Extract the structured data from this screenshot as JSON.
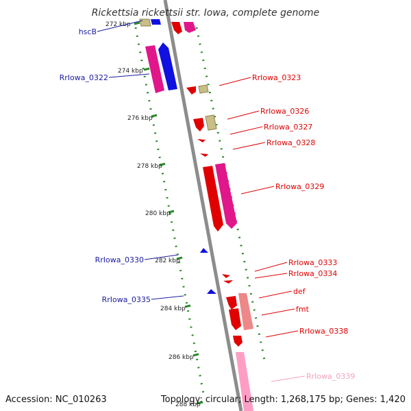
{
  "title": "Rickettsia rickettsii str. Iowa, complete genome",
  "footer": {
    "accession": "Accession: NC_010263",
    "topology": "Topology: circular; Length: 1,268,175 bp; Genes: 1,420"
  },
  "colors": {
    "backbone": "#8c8c8c",
    "guide": "#2a8a2a",
    "forward_label": "#1a1aa0",
    "reverse_label": "#e00000",
    "faded_label": "#f4a0c0"
  },
  "ticks": [
    "272 kbp",
    "274 kbp",
    "276 kbp",
    "278 kbp",
    "280 kbp",
    "282 kbp",
    "284 kbp",
    "286 kbp",
    "288 kbp"
  ],
  "left_labels": [
    {
      "text": "hscB"
    },
    {
      "text": "RrIowa_0322"
    },
    {
      "text": "RrIowa_0330"
    },
    {
      "text": "RrIowa_0335"
    }
  ],
  "right_labels": [
    {
      "text": "RrIowa_0323"
    },
    {
      "text": "RrIowa_0326"
    },
    {
      "text": "RrIowa_0327"
    },
    {
      "text": "RrIowa_0328"
    },
    {
      "text": "RrIowa_0329"
    },
    {
      "text": "RrIowa_0333"
    },
    {
      "text": "RrIowa_0334"
    },
    {
      "text": "def"
    },
    {
      "text": "fmt"
    },
    {
      "text": "RrIowa_0338"
    },
    {
      "text": "RrIowa_0339"
    }
  ]
}
